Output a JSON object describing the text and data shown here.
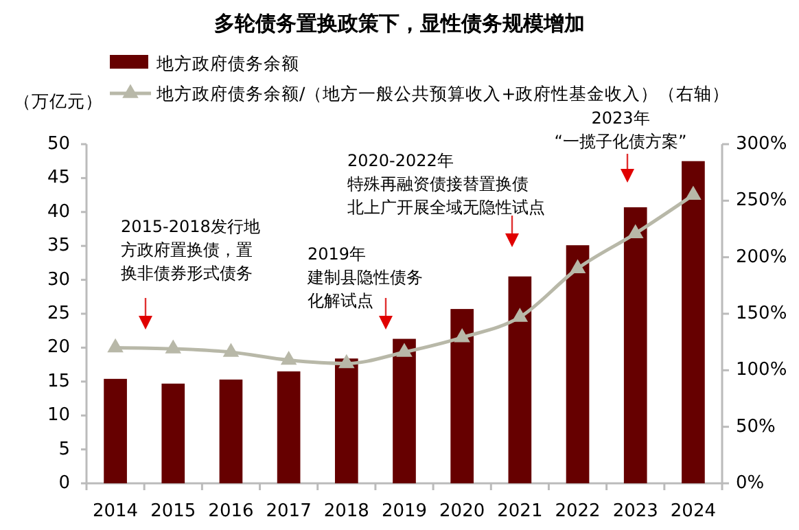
{
  "chart_data": {
    "type": "bar",
    "title": "多轮债务置换政策下，显性债务规模增加",
    "ylabel": "（万亿元）",
    "categories": [
      "2014",
      "2015",
      "2016",
      "2017",
      "2018",
      "2019",
      "2020",
      "2021",
      "2022",
      "2023",
      "2024"
    ],
    "series": [
      {
        "name": "地方政府债务余额",
        "color": "#660000",
        "values": [
          15.4,
          14.7,
          15.3,
          16.5,
          18.4,
          21.3,
          25.7,
          30.5,
          35.1,
          40.7,
          47.5
        ]
      },
      {
        "name": "地方政府债务余额/（地方一般公共预算收入+政府性基金收入）（右轴）",
        "type": "line",
        "axis": "y2",
        "color": "#b8b8a8",
        "marker": "triangle",
        "values": [
          120,
          119,
          116,
          109,
          106,
          116,
          129,
          147,
          190,
          221,
          255
        ]
      }
    ],
    "ylim": [
      0,
      50
    ],
    "yticks": [
      0,
      5,
      10,
      15,
      20,
      25,
      30,
      35,
      40,
      45,
      50
    ],
    "y2lim": [
      0,
      300
    ],
    "y2ticks": [
      {
        "value": 0,
        "label": "0%"
      },
      {
        "value": 50,
        "label": "50%"
      },
      {
        "value": 100,
        "label": "100%"
      },
      {
        "value": 150,
        "label": "150%"
      },
      {
        "value": 200,
        "label": "200%"
      },
      {
        "value": 250,
        "label": "250%"
      },
      {
        "value": 300,
        "label": "300%"
      }
    ],
    "legend": "top",
    "grid": false,
    "annotations": [
      "2015-2018发行地方政府置换债，置换非债券形式债务",
      "2019年建制县隐性债务化解试点",
      "2020-2022年特殊再融资债接替置换债北上广开展全域无隐性试点",
      "2023年“一揽子化债方案”"
    ]
  }
}
